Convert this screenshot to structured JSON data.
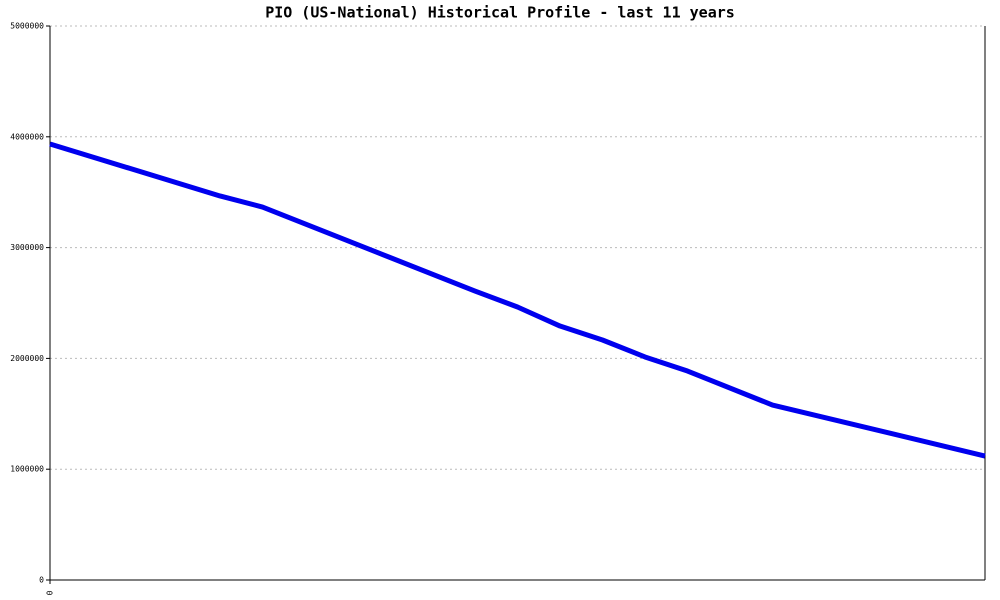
{
  "chart_data": {
    "type": "line",
    "title": "PIO (US-National) Historical Profile - last 11 years",
    "x": [
      0,
      24,
      30,
      60,
      66,
      72,
      78,
      84,
      90,
      102,
      132
    ],
    "series": [
      {
        "color": "#0000ee",
        "values": [
          3935000,
          3466000,
          3366000,
          2608000,
          2464000,
          2292000,
          2166000,
          2013000,
          1886000,
          1579000,
          1119000
        ]
      }
    ],
    "xlim": [
      0,
      132
    ],
    "xticks": [
      0
    ],
    "ylim": [
      0,
      5000000
    ],
    "yticks": [
      0,
      1000000,
      2000000,
      3000000,
      4000000,
      5000000
    ],
    "grid": true
  }
}
